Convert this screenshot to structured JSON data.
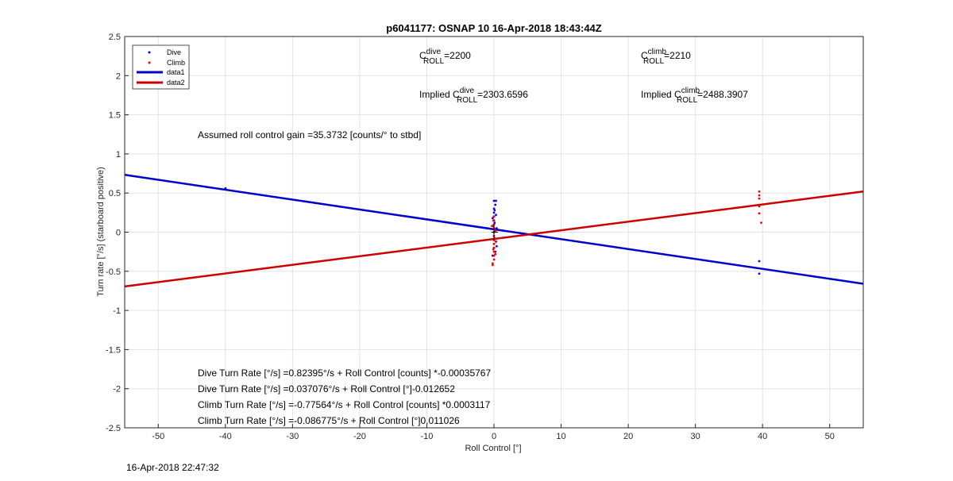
{
  "chart_data": {
    "type": "scatter",
    "title": "p6041177: OSNAP 10 16-Apr-2018 18:43:44Z",
    "xlabel": "Roll Control [°]",
    "ylabel": "Turn rate [°/s] (starboard positive)",
    "xlim": [
      -55,
      55
    ],
    "ylim": [
      -2.5,
      2.5
    ],
    "xticks": [
      -50,
      -40,
      -30,
      -20,
      -10,
      0,
      10,
      20,
      30,
      40,
      50
    ],
    "yticks": [
      -2.5,
      -2,
      -1.5,
      -1,
      -0.5,
      0,
      0.5,
      1,
      1.5,
      2,
      2.5
    ],
    "grid": true,
    "legend_position": "top-left",
    "series": [
      {
        "name": "Dive",
        "kind": "points",
        "color": "#0000ff",
        "x": [
          -40,
          0,
          0,
          0,
          0,
          0,
          0,
          0,
          0,
          0,
          0,
          0,
          0,
          0.1,
          0.1,
          0.1,
          0.2,
          0.2,
          0.2,
          0.3,
          0.3,
          0.3,
          -0.2,
          -0.2,
          -0.1,
          0.4,
          0.4,
          39.5,
          39.5
        ],
        "y": [
          0.56,
          0.4,
          0.3,
          0.25,
          0.2,
          0.15,
          0.1,
          0.05,
          0.0,
          -0.05,
          -0.1,
          -0.15,
          -0.2,
          0.28,
          -0.08,
          0.12,
          0.35,
          -0.25,
          0.02,
          0.4,
          -0.12,
          0.22,
          0.18,
          -0.3,
          0.08,
          -0.18,
          0.05,
          -0.37,
          -0.53
        ]
      },
      {
        "name": "Climb",
        "kind": "points",
        "color": "#ff0000",
        "x": [
          0,
          0,
          0,
          0,
          0,
          0,
          0,
          0,
          0,
          0,
          0,
          -0.2,
          -0.2,
          -0.1,
          -0.1,
          0.1,
          0.2,
          0.2,
          0.3,
          -0.3,
          39.5,
          39.5,
          39.5,
          39.5,
          39.5,
          39.8
        ],
        "y": [
          0.2,
          0.1,
          0.05,
          0.0,
          -0.05,
          -0.1,
          -0.15,
          -0.2,
          -0.25,
          -0.3,
          -0.35,
          -0.4,
          -0.42,
          0.15,
          -0.22,
          -0.08,
          0.02,
          -0.28,
          -0.12,
          0.08,
          0.52,
          0.47,
          0.43,
          0.33,
          0.24,
          0.12
        ]
      },
      {
        "name": "data1",
        "kind": "line",
        "color": "#0000cc",
        "x": [
          -55,
          55
        ],
        "y": [
          0.7324,
          -0.6588
        ]
      },
      {
        "name": "data2",
        "kind": "line",
        "color": "#cc0000",
        "x": [
          -55,
          55
        ],
        "y": [
          -0.6932,
          0.5197
        ]
      }
    ],
    "annotations": {
      "cdive": "=2200",
      "cclimb": "=2210",
      "implied_dive": "=2303.6596",
      "implied_climb": "=2488.3907",
      "gain": "Assumed roll control gain =35.3732 [counts/° to stbd]",
      "eq1": "Dive Turn Rate [°/s] =0.82395°/s + Roll Control [counts] *-0.00035767",
      "eq2": "Dive Turn Rate [°/s] =0.037076°/s + Roll Control [°]-0.012652",
      "eq3": "Climb Turn Rate [°/s] =-0.77564°/s + Roll Control [counts] *0.0003117",
      "eq4": "Climb Turn Rate [°/s] =-0.086775°/s + Roll Control [°]0.011026"
    },
    "sym": {
      "C": "C",
      "roll": "ROLL",
      "dive": "dive",
      "climb": "climb",
      "implied": "Implied C"
    }
  },
  "footer_timestamp": "16-Apr-2018 22:47:32"
}
